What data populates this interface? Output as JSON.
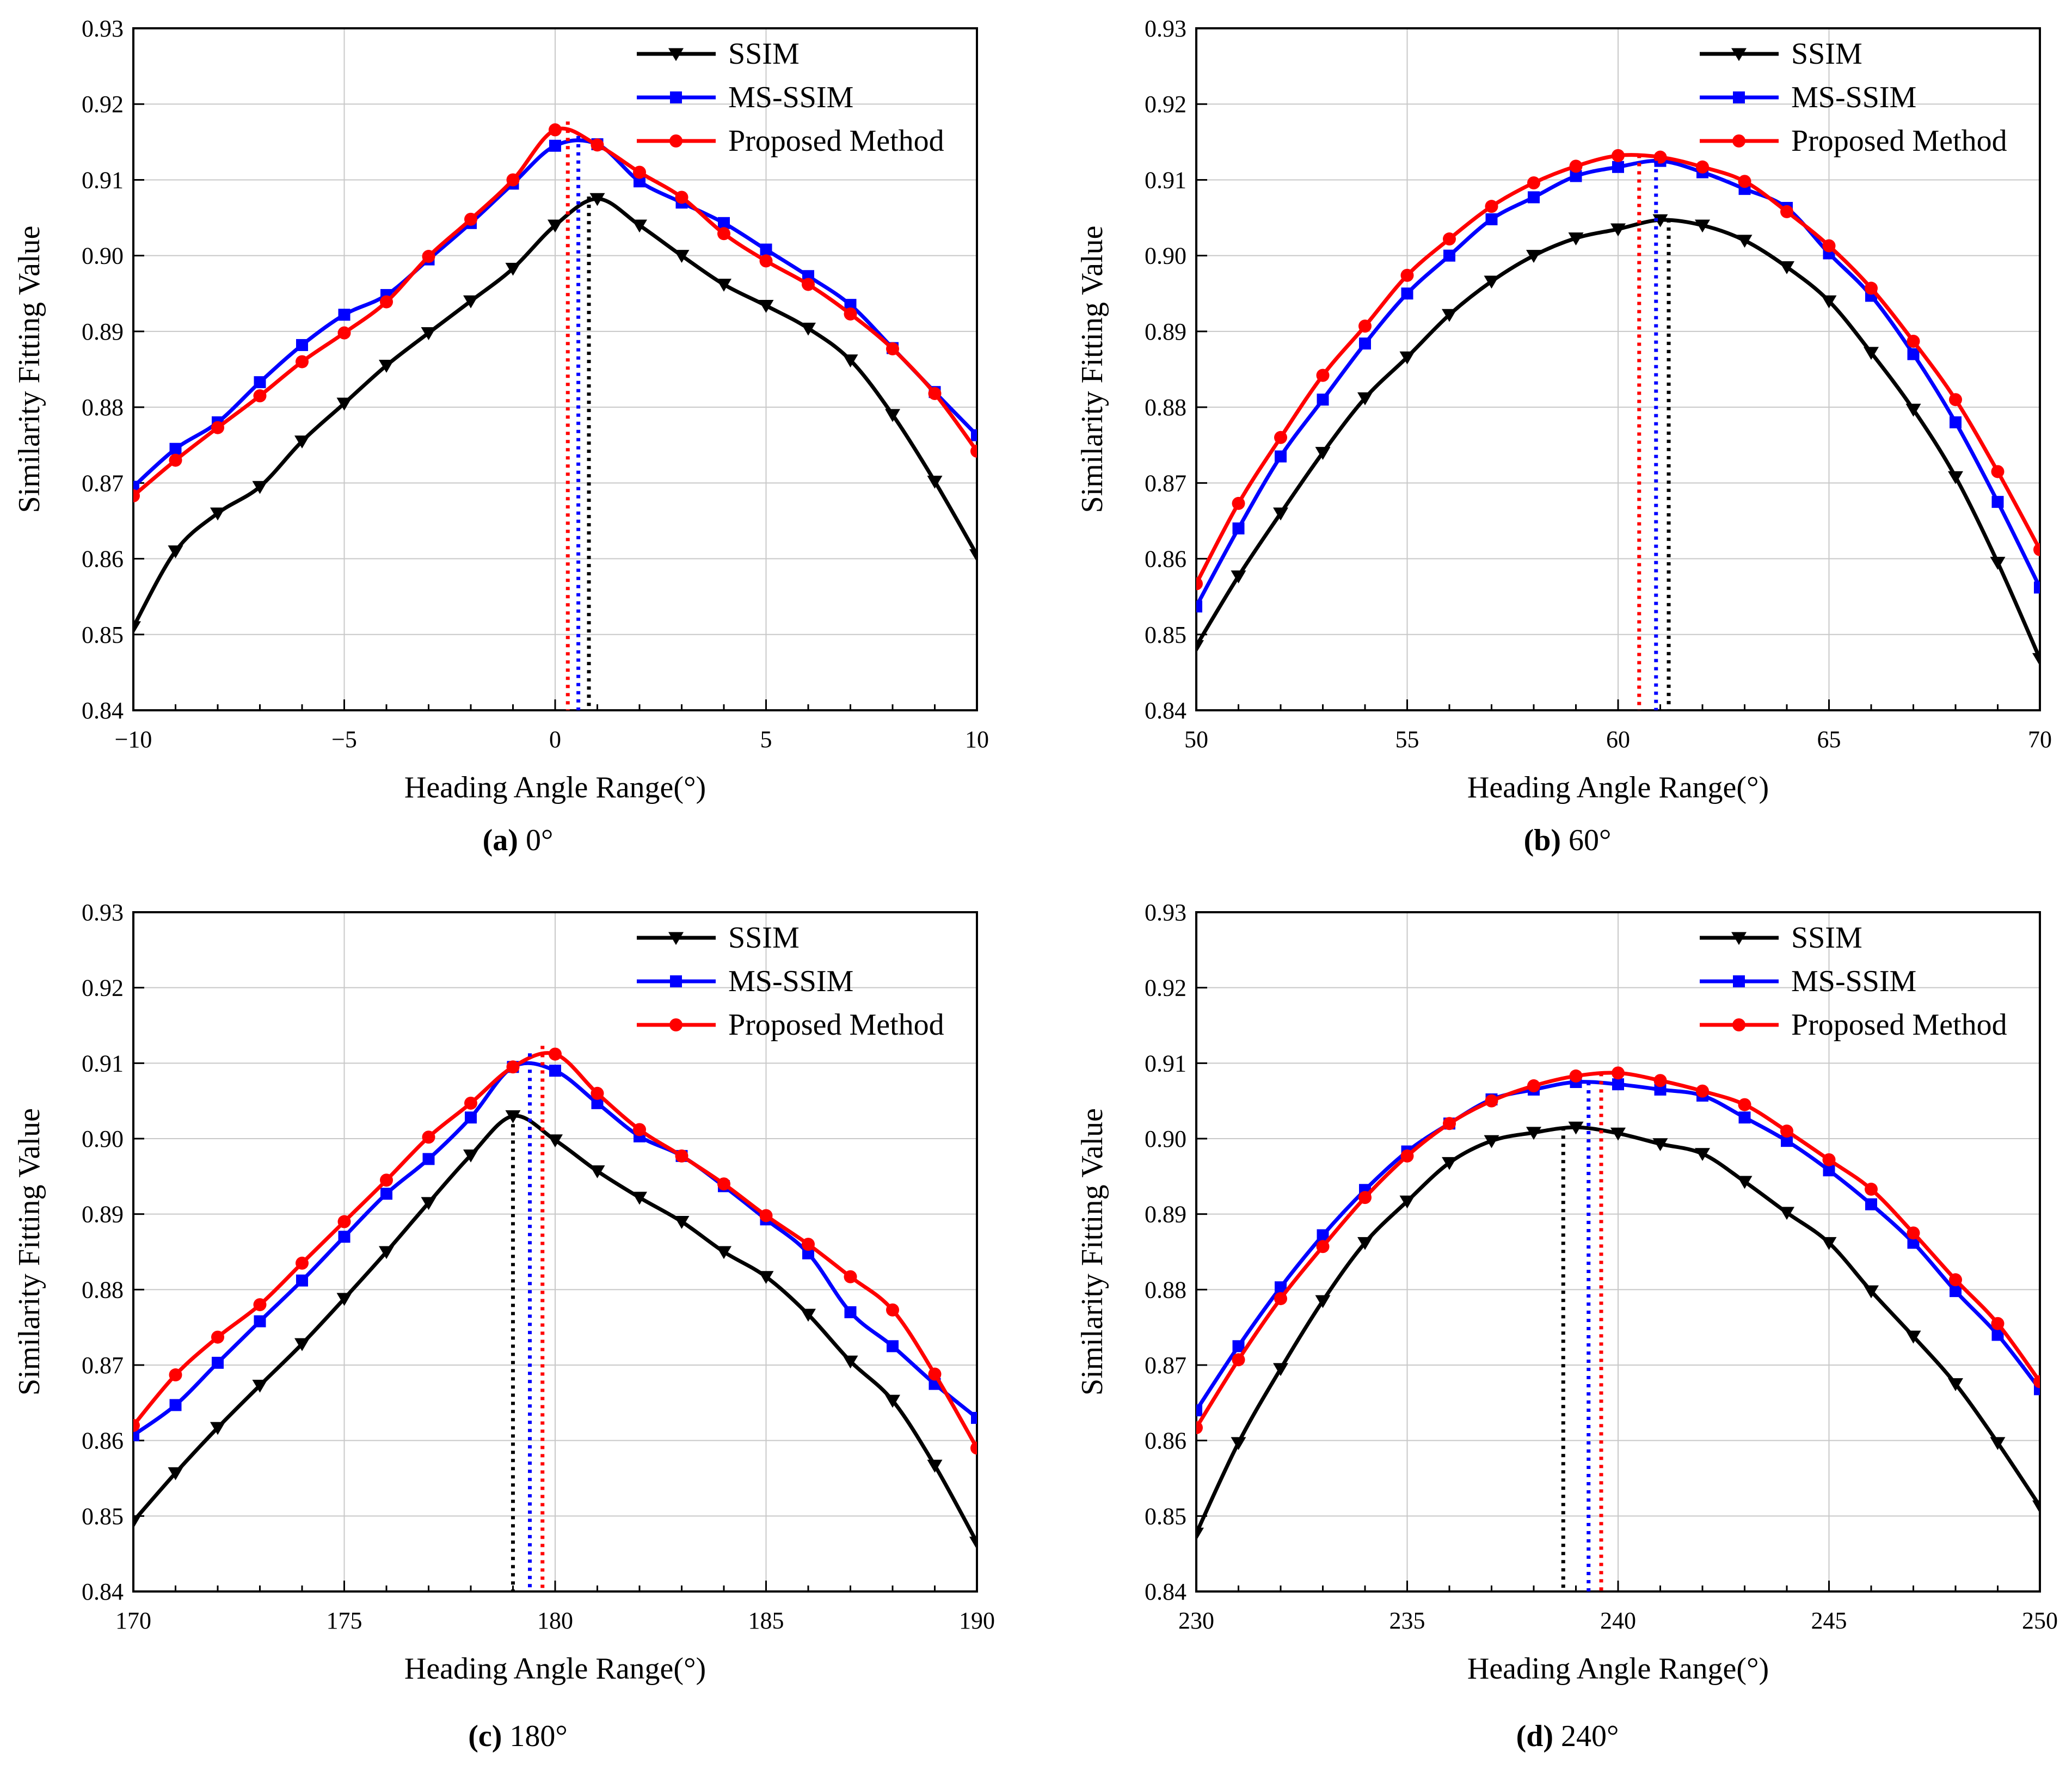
{
  "figure": {
    "legend_labels": [
      "SSIM",
      "MS-SSIM",
      "Proposed Method"
    ],
    "colors": {
      "ssim": "#000000",
      "msssim": "#0000ff",
      "proposed": "#ff0000",
      "grid": "#c8c8c8",
      "axis": "#000000"
    },
    "markers": {
      "ssim": "down-triangle",
      "msssim": "square",
      "proposed": "circle"
    }
  },
  "chart_data": [
    {
      "type": "line",
      "caption_letter": "(a)",
      "caption_text": "0°",
      "xlabel": "Heading Angle Range(°)",
      "ylabel": "Similarity Fitting Value",
      "xlim": [
        -10,
        10
      ],
      "ylim": [
        0.84,
        0.93
      ],
      "xticks": [
        -10,
        -5,
        0,
        5,
        10
      ],
      "xtick_labels": [
        "−10",
        "−5",
        "0",
        "5",
        "10"
      ],
      "yticks": [
        0.84,
        0.85,
        0.86,
        0.87,
        0.88,
        0.89,
        0.9,
        0.91,
        0.92,
        0.93
      ],
      "ytick_labels": [
        "0.84",
        "0.85",
        "0.86",
        "0.87",
        "0.88",
        "0.89",
        "0.90",
        "0.91",
        "0.92",
        "0.93"
      ],
      "grid": true,
      "legend": "top-right",
      "x": [
        -10,
        -9,
        -8,
        -7,
        -6,
        -5,
        -4,
        -3,
        -2,
        -1,
        0,
        1,
        2,
        3,
        4,
        5,
        6,
        7,
        8,
        9,
        10
      ],
      "series": [
        {
          "name": "SSIM",
          "values": [
            0.851,
            0.861,
            0.866,
            0.8695,
            0.8755,
            0.8805,
            0.8855,
            0.8898,
            0.894,
            0.8983,
            0.904,
            0.9075,
            0.904,
            0.9,
            0.8962,
            0.8934,
            0.8904,
            0.8862,
            0.879,
            0.8702,
            0.8605
          ]
        },
        {
          "name": "MS-SSIM",
          "values": [
            0.8695,
            0.8745,
            0.878,
            0.8833,
            0.8882,
            0.8922,
            0.8948,
            0.8995,
            0.9043,
            0.9095,
            0.9145,
            0.9147,
            0.9098,
            0.907,
            0.9043,
            0.9008,
            0.8973,
            0.8935,
            0.8878,
            0.882,
            0.8763
          ]
        },
        {
          "name": "Proposed Method",
          "values": [
            0.8683,
            0.873,
            0.8773,
            0.8815,
            0.886,
            0.8898,
            0.8939,
            0.8999,
            0.9048,
            0.91,
            0.9166,
            0.9146,
            0.911,
            0.9077,
            0.9029,
            0.8993,
            0.8962,
            0.8923,
            0.8877,
            0.8818,
            0.8742
          ]
        }
      ],
      "peaks": [
        {
          "x": 0.8,
          "y": 0.9078
        },
        {
          "x": 0.55,
          "y": 0.9158
        },
        {
          "x": 0.3,
          "y": 0.9177
        }
      ]
    },
    {
      "type": "line",
      "caption_letter": "(b)",
      "caption_text": "60°",
      "xlabel": "Heading Angle Range(°)",
      "ylabel": "Similarity Fitting Value",
      "xlim": [
        50,
        70
      ],
      "ylim": [
        0.84,
        0.93
      ],
      "xticks": [
        50,
        55,
        60,
        65,
        70
      ],
      "xtick_labels": [
        "50",
        "55",
        "60",
        "65",
        "70"
      ],
      "yticks": [
        0.84,
        0.85,
        0.86,
        0.87,
        0.88,
        0.89,
        0.9,
        0.91,
        0.92,
        0.93
      ],
      "ytick_labels": [
        "0.84",
        "0.85",
        "0.86",
        "0.87",
        "0.88",
        "0.89",
        "0.90",
        "0.91",
        "0.92",
        "0.93"
      ],
      "grid": true,
      "legend": "top-right",
      "x": [
        50,
        51,
        52,
        53,
        54,
        55,
        56,
        57,
        58,
        59,
        60,
        61,
        62,
        63,
        64,
        65,
        66,
        67,
        68,
        69,
        70
      ],
      "series": [
        {
          "name": "SSIM",
          "values": [
            0.8485,
            0.8577,
            0.866,
            0.874,
            0.8812,
            0.8866,
            0.8922,
            0.8966,
            0.9,
            0.9023,
            0.9035,
            0.9047,
            0.904,
            0.902,
            0.8985,
            0.894,
            0.8872,
            0.8797,
            0.8708,
            0.8595,
            0.8468
          ]
        },
        {
          "name": "MS-SSIM",
          "values": [
            0.8537,
            0.864,
            0.8735,
            0.881,
            0.8884,
            0.895,
            0.9,
            0.9048,
            0.9077,
            0.9105,
            0.9117,
            0.9125,
            0.911,
            0.9088,
            0.9063,
            0.9003,
            0.8947,
            0.887,
            0.878,
            0.8675,
            0.8562
          ]
        },
        {
          "name": "Proposed Method",
          "values": [
            0.8567,
            0.8673,
            0.876,
            0.8842,
            0.8907,
            0.8974,
            0.9022,
            0.9065,
            0.9096,
            0.9118,
            0.9132,
            0.913,
            0.9117,
            0.9098,
            0.9058,
            0.9013,
            0.8957,
            0.8887,
            0.881,
            0.8715,
            0.8612
          ]
        }
      ],
      "peaks": [
        {
          "x": 61.2,
          "y": 0.9048
        },
        {
          "x": 60.9,
          "y": 0.9125
        },
        {
          "x": 60.5,
          "y": 0.9133
        }
      ]
    },
    {
      "type": "line",
      "caption_letter": "(c)",
      "caption_text": "180°",
      "xlabel": "Heading Angle Range(°)",
      "ylabel": "Similarity Fitting Value",
      "xlim": [
        170,
        190
      ],
      "ylim": [
        0.84,
        0.93
      ],
      "xticks": [
        170,
        175,
        180,
        185,
        190
      ],
      "xtick_labels": [
        "170",
        "175",
        "180",
        "185",
        "190"
      ],
      "yticks": [
        0.84,
        0.85,
        0.86,
        0.87,
        0.88,
        0.89,
        0.9,
        0.91,
        0.92,
        0.93
      ],
      "ytick_labels": [
        "0.84",
        "0.85",
        "0.86",
        "0.87",
        "0.88",
        "0.89",
        "0.90",
        "0.91",
        "0.92",
        "0.93"
      ],
      "grid": true,
      "legend": "top-right",
      "x": [
        170,
        171,
        172,
        173,
        174,
        175,
        176,
        177,
        178,
        179,
        180,
        181,
        182,
        183,
        184,
        185,
        186,
        187,
        188,
        189,
        190
      ],
      "series": [
        {
          "name": "SSIM",
          "values": [
            0.8493,
            0.8557,
            0.8617,
            0.8673,
            0.8728,
            0.8788,
            0.885,
            0.8915,
            0.8978,
            0.903,
            0.8998,
            0.8957,
            0.8922,
            0.889,
            0.885,
            0.8817,
            0.8767,
            0.8705,
            0.8653,
            0.8567,
            0.8465
          ]
        },
        {
          "name": "MS-SSIM",
          "values": [
            0.8607,
            0.8647,
            0.8703,
            0.8758,
            0.8812,
            0.887,
            0.8927,
            0.8973,
            0.9028,
            0.9095,
            0.909,
            0.9047,
            0.9003,
            0.8977,
            0.8937,
            0.8893,
            0.8848,
            0.877,
            0.8725,
            0.8675,
            0.863
          ]
        },
        {
          "name": "Proposed Method",
          "values": [
            0.862,
            0.8687,
            0.8737,
            0.878,
            0.8835,
            0.889,
            0.8945,
            0.9002,
            0.9047,
            0.9095,
            0.9112,
            0.906,
            0.9012,
            0.8977,
            0.894,
            0.8898,
            0.886,
            0.8817,
            0.8773,
            0.8688,
            0.859
          ]
        }
      ],
      "peaks": [
        {
          "x": 179.0,
          "y": 0.903
        },
        {
          "x": 179.4,
          "y": 0.9113
        },
        {
          "x": 179.7,
          "y": 0.9123
        }
      ]
    },
    {
      "type": "line",
      "caption_letter": "(d)",
      "caption_text": "240°",
      "xlabel": "Heading Angle Range(°)",
      "ylabel": "Similarity Fitting Value",
      "xlim": [
        230,
        250
      ],
      "ylim": [
        0.84,
        0.93
      ],
      "xticks": [
        230,
        235,
        240,
        245,
        250
      ],
      "xtick_labels": [
        "230",
        "235",
        "240",
        "245",
        "250"
      ],
      "yticks": [
        0.84,
        0.85,
        0.86,
        0.87,
        0.88,
        0.89,
        0.9,
        0.91,
        0.92,
        0.93
      ],
      "ytick_labels": [
        "0.84",
        "0.85",
        "0.86",
        "0.87",
        "0.88",
        "0.89",
        "0.90",
        "0.91",
        "0.92",
        "0.93"
      ],
      "grid": true,
      "legend": "top-right",
      "x": [
        230,
        231,
        232,
        233,
        234,
        235,
        236,
        237,
        238,
        239,
        240,
        241,
        242,
        243,
        244,
        245,
        246,
        247,
        248,
        249,
        250
      ],
      "series": [
        {
          "name": "SSIM",
          "values": [
            0.8477,
            0.8597,
            0.8695,
            0.8785,
            0.8862,
            0.8917,
            0.8968,
            0.8997,
            0.9008,
            0.9015,
            0.9007,
            0.8993,
            0.898,
            0.8943,
            0.8902,
            0.8862,
            0.8798,
            0.8738,
            0.8675,
            0.8597,
            0.8513
          ]
        },
        {
          "name": "MS-SSIM",
          "values": [
            0.864,
            0.8725,
            0.8803,
            0.8872,
            0.8932,
            0.8983,
            0.902,
            0.9052,
            0.9065,
            0.9075,
            0.9072,
            0.9065,
            0.9057,
            0.9028,
            0.8997,
            0.8958,
            0.8913,
            0.8862,
            0.8798,
            0.874,
            0.8668
          ]
        },
        {
          "name": "Proposed Method",
          "values": [
            0.8617,
            0.8707,
            0.8788,
            0.8857,
            0.8922,
            0.8977,
            0.902,
            0.905,
            0.907,
            0.9083,
            0.9087,
            0.9077,
            0.9063,
            0.9045,
            0.901,
            0.8972,
            0.8933,
            0.8875,
            0.8813,
            0.8755,
            0.8678
          ]
        }
      ],
      "peaks": [
        {
          "x": 238.7,
          "y": 0.9015
        },
        {
          "x": 239.3,
          "y": 0.9075
        },
        {
          "x": 239.6,
          "y": 0.9087
        }
      ]
    }
  ]
}
